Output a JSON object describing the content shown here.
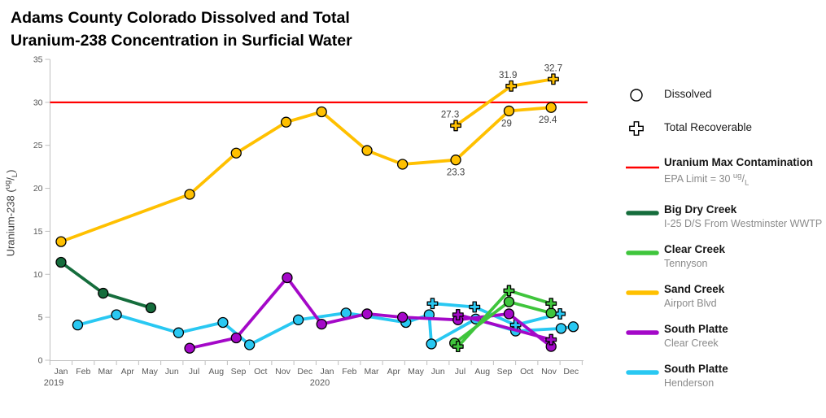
{
  "title": {
    "line1": "Adams County Colorado Dissolved and Total",
    "line2": "Uranium-238 Concentration in Surficial Water"
  },
  "chart_data": {
    "type": "line",
    "x_axis": {
      "months": [
        "Jan",
        "Feb",
        "Mar",
        "Apr",
        "May",
        "Jun",
        "Jul",
        "Aug",
        "Sep",
        "Oct",
        "Nov",
        "Dec",
        "Jan",
        "Feb",
        "Mar",
        "Apr",
        "May",
        "Jun",
        "Jul",
        "Aug",
        "Sep",
        "Oct",
        "Nov",
        "Dec"
      ],
      "year_labels": [
        {
          "text": "2019",
          "month_index": 0
        },
        {
          "text": "2020",
          "month_index": 12
        }
      ]
    },
    "y_axis": {
      "label": "Uranium-238",
      "unit": {
        "open": " (",
        "sup": "ug",
        "slash": "/",
        "sub": "L",
        "close": ")"
      },
      "min": 0,
      "max": 35,
      "step": 5,
      "ticks": [
        0,
        5,
        10,
        15,
        20,
        25,
        30,
        35
      ]
    },
    "grid": "off",
    "legend_position": "right",
    "marker_legend": [
      {
        "marker": "circle",
        "label": "Dissolved"
      },
      {
        "marker": "cross",
        "label": "Total Recoverable"
      }
    ],
    "epa_line": {
      "value": 30,
      "color": "#FF0000",
      "label": "Uranium Max Contamination",
      "sublabel": {
        "prefix": "EPA Limit = 30 ",
        "sup": "ug",
        "slash": "/",
        "sub": "L"
      }
    },
    "draw_order": [
      "big_dry_creek",
      "south_platte_henderson",
      "south_platte_clear_creek",
      "clear_creek_tennyson",
      "sand_creek"
    ],
    "series": [
      {
        "id": "big_dry_creek",
        "name": "Big Dry Creek",
        "location": "I-25 D/S From Westminster WWTP",
        "color": "#156D3C",
        "dissolved": [
          {
            "x": 0.0,
            "y": 11.4
          },
          {
            "x": 1.9,
            "y": 7.8
          },
          {
            "x": 4.05,
            "y": 6.1
          }
        ],
        "total_recoverable": []
      },
      {
        "id": "clear_creek_tennyson",
        "name": "Clear Creek",
        "location": "Tennyson",
        "color": "#3FC53C",
        "dissolved": [
          {
            "x": 17.75,
            "y": 2.0
          },
          {
            "x": 20.2,
            "y": 6.8
          },
          {
            "x": 22.1,
            "y": 5.5
          }
        ],
        "total_recoverable": [
          {
            "x": 17.9,
            "y": 1.6
          },
          {
            "x": 20.2,
            "y": 8.1
          },
          {
            "x": 22.1,
            "y": 6.6
          }
        ]
      },
      {
        "id": "sand_creek",
        "name": "Sand Creek",
        "location": "Airport Blvd",
        "color": "#FFC000",
        "dissolved": [
          {
            "x": 0.0,
            "y": 13.8
          },
          {
            "x": 5.8,
            "y": 19.3
          },
          {
            "x": 7.9,
            "y": 24.1
          },
          {
            "x": 10.15,
            "y": 27.7
          },
          {
            "x": 11.75,
            "y": 28.9
          },
          {
            "x": 13.8,
            "y": 24.4
          },
          {
            "x": 15.4,
            "y": 22.8
          },
          {
            "x": 17.8,
            "y": 23.3,
            "label": "23.3",
            "pos": "below"
          },
          {
            "x": 20.2,
            "y": 29.0,
            "label": "29",
            "pos": "below",
            "dx": -3
          },
          {
            "x": 22.1,
            "y": 29.4,
            "label": "29.4",
            "pos": "below",
            "dx": -4
          }
        ],
        "total_recoverable": [
          {
            "x": 17.8,
            "y": 27.3,
            "label": "27.3",
            "pos": "above",
            "dx": -7
          },
          {
            "x": 20.3,
            "y": 31.9,
            "label": "31.9",
            "pos": "above",
            "dx": -4
          },
          {
            "x": 22.2,
            "y": 32.7,
            "label": "32.7",
            "pos": "above"
          }
        ]
      },
      {
        "id": "south_platte_clear_creek",
        "name": "South Platte",
        "location": "Clear Creek",
        "color": "#A408C8",
        "dissolved": [
          {
            "x": 5.8,
            "y": 1.4
          },
          {
            "x": 7.9,
            "y": 2.6
          },
          {
            "x": 10.2,
            "y": 9.6
          },
          {
            "x": 11.75,
            "y": 4.2
          },
          {
            "x": 13.8,
            "y": 5.4
          },
          {
            "x": 15.4,
            "y": 5.0
          },
          {
            "x": 17.9,
            "y": 4.7
          },
          {
            "x": 20.2,
            "y": 5.4
          },
          {
            "x": 22.1,
            "y": 1.6
          }
        ],
        "total_recoverable": [
          {
            "x": 17.9,
            "y": 5.3
          },
          {
            "x": 22.1,
            "y": 2.4
          }
        ]
      },
      {
        "id": "south_platte_henderson",
        "name": "South Platte",
        "location": "Henderson",
        "color": "#29C8F2",
        "dissolved": [
          {
            "x": 0.75,
            "y": 4.1
          },
          {
            "x": 2.5,
            "y": 5.3
          },
          {
            "x": 5.3,
            "y": 3.2
          },
          {
            "x": 7.3,
            "y": 4.4
          },
          {
            "x": 8.5,
            "y": 1.8
          },
          {
            "x": 10.7,
            "y": 4.7
          },
          {
            "x": 12.85,
            "y": 5.5
          },
          {
            "x": 15.55,
            "y": 4.4
          },
          {
            "x": 16.6,
            "y": 5.3
          },
          {
            "x": 16.7,
            "y": 1.9
          },
          {
            "x": 18.7,
            "y": 4.8
          },
          {
            "x": 20.5,
            "y": 3.4
          },
          {
            "x": 22.55,
            "y": 3.7
          },
          {
            "x": 23.1,
            "y": 3.9
          }
        ],
        "total_recoverable": [
          {
            "x": 16.75,
            "y": 6.6
          },
          {
            "x": 18.65,
            "y": 6.2
          },
          {
            "x": 20.5,
            "y": 4.1
          },
          {
            "x": 22.5,
            "y": 5.4
          }
        ]
      }
    ]
  },
  "legend_order": [
    "big_dry_creek",
    "clear_creek_tennyson",
    "sand_creek",
    "south_platte_clear_creek",
    "south_platte_henderson"
  ]
}
